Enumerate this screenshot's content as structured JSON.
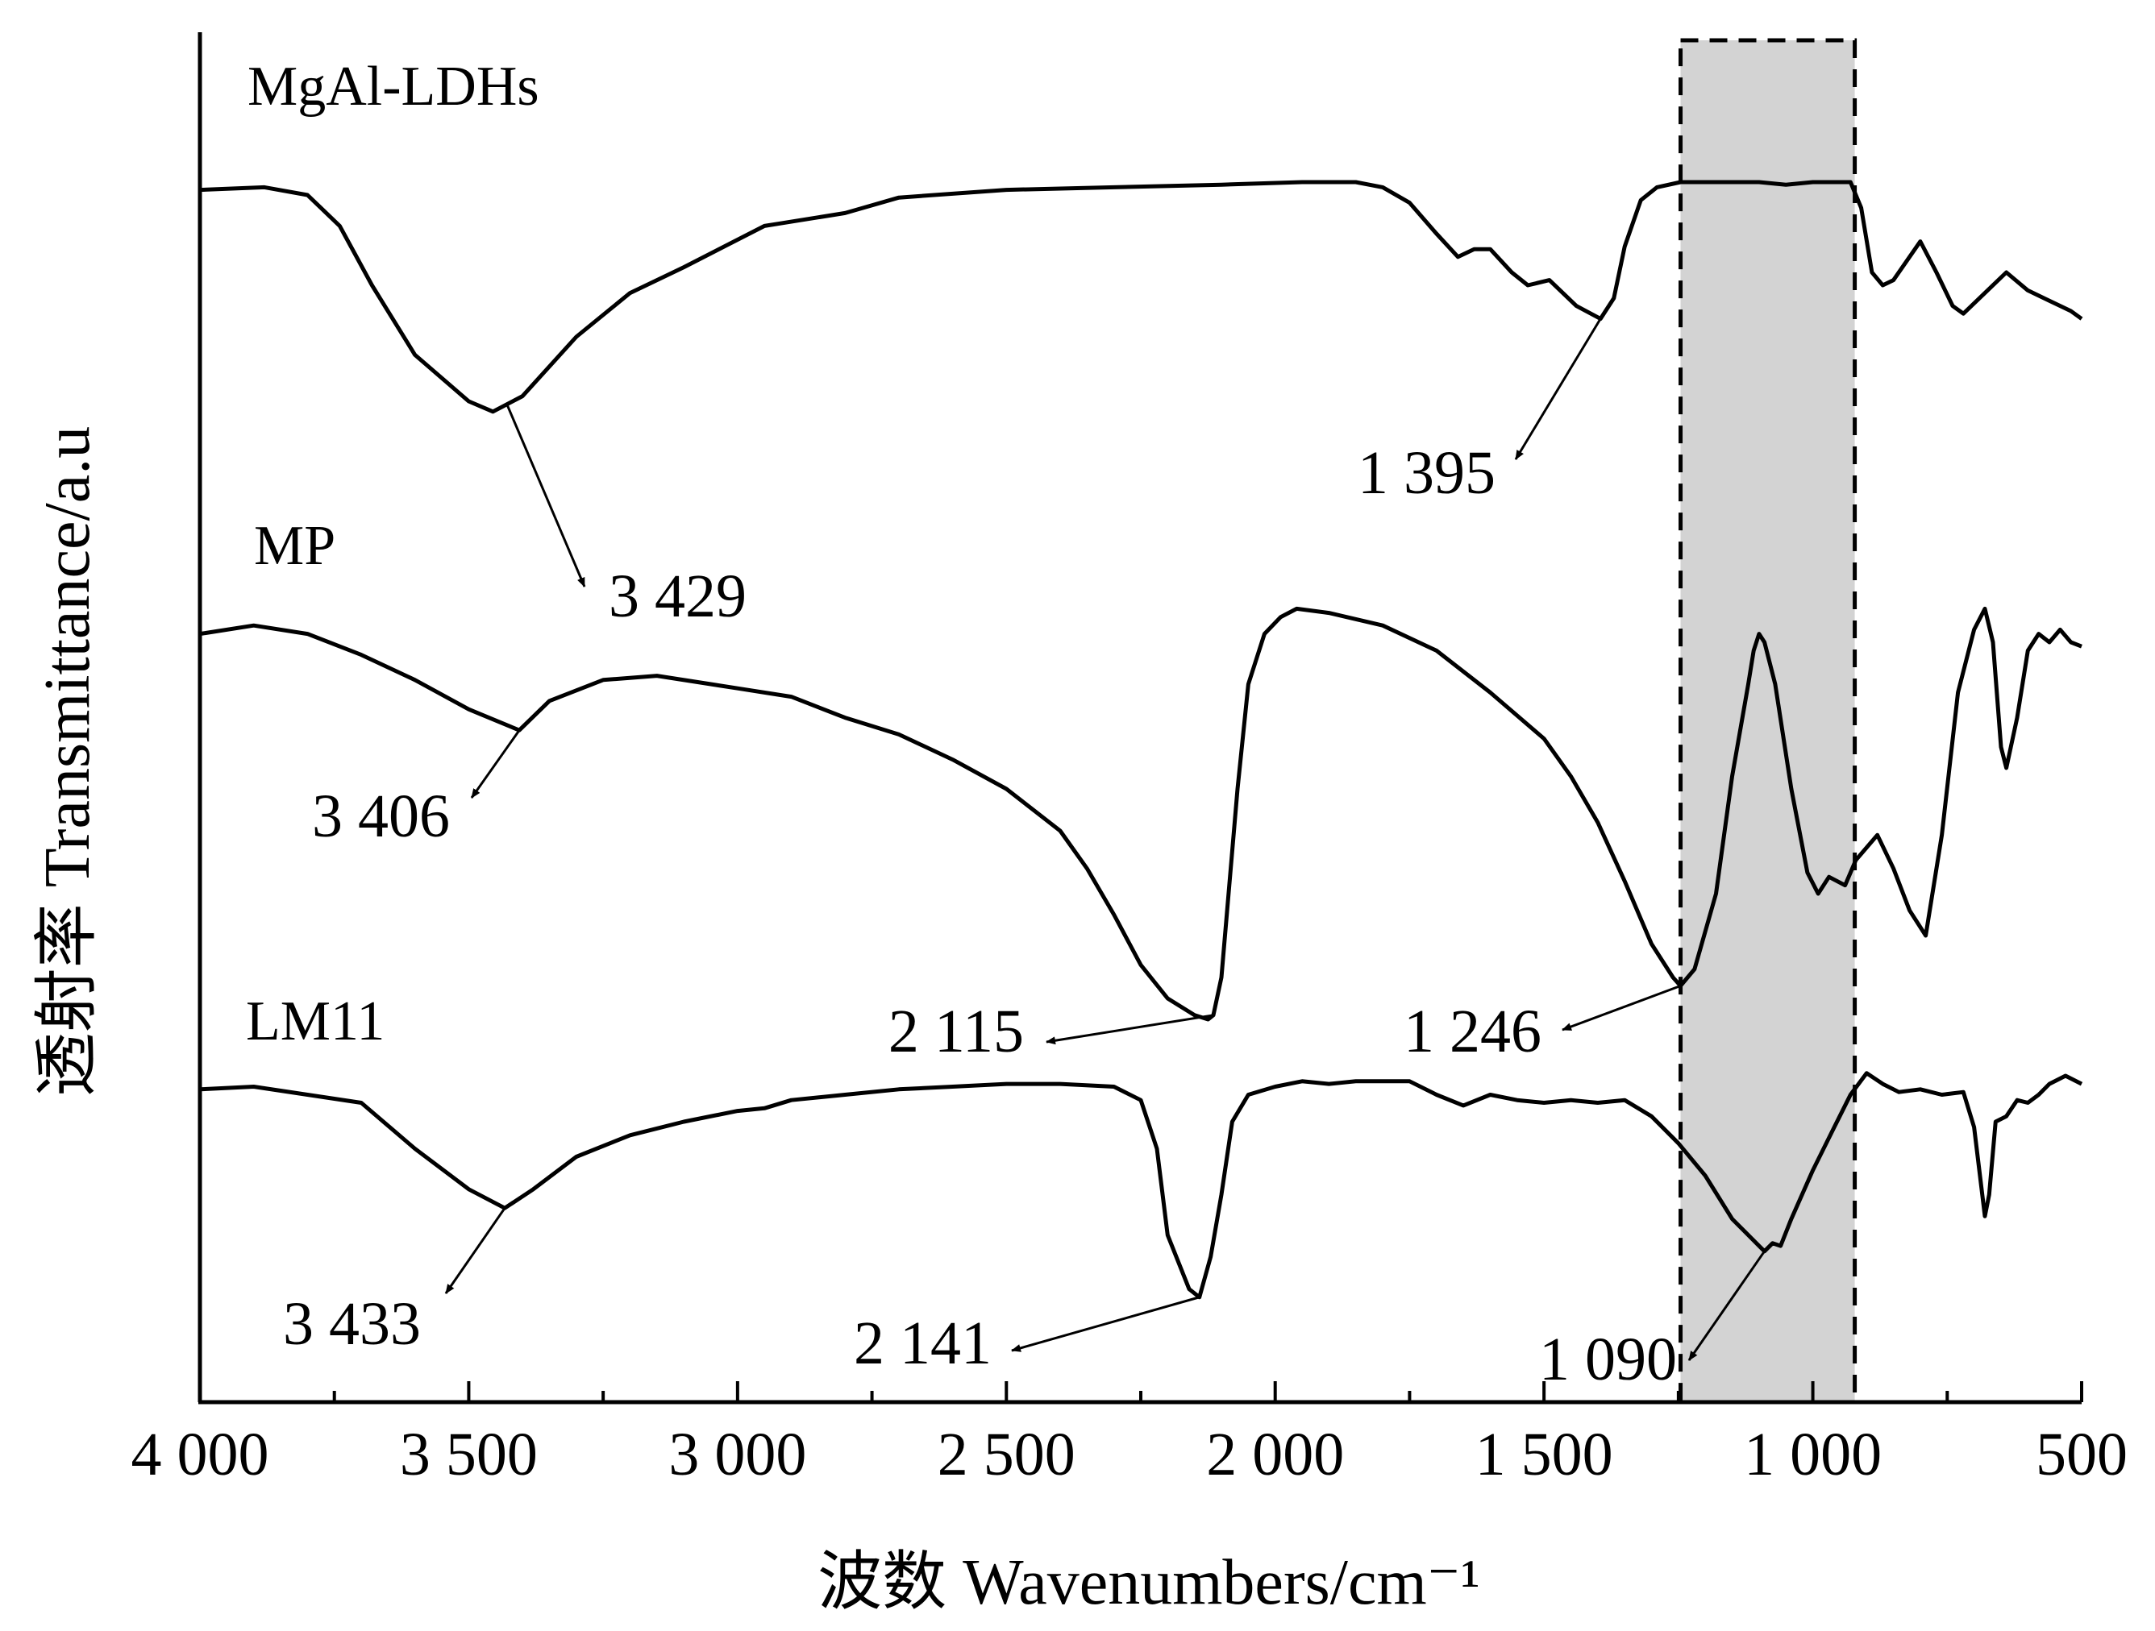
{
  "chart_data": {
    "type": "line",
    "title": "",
    "xlabel": "波数 Wavenumbers/cm⁻¹",
    "ylabel": "透射率 Transmittance/a.u",
    "xlim": [
      4000,
      500
    ],
    "x_reversed": true,
    "y_ticks": false,
    "grid": false,
    "legend": "none",
    "x_ticks": [
      {
        "value": 4000,
        "label": "4 000"
      },
      {
        "value": 3500,
        "label": "3 500"
      },
      {
        "value": 3000,
        "label": "3 000"
      },
      {
        "value": 2500,
        "label": "2 500"
      },
      {
        "value": 2000,
        "label": "2 000"
      },
      {
        "value": 1500,
        "label": "1 500"
      },
      {
        "value": 1000,
        "label": "1 000"
      },
      {
        "value": 500,
        "label": "500"
      }
    ],
    "highlight_region": {
      "x_from": 1246,
      "x_to": 922,
      "fill": "#d3d3d3",
      "border": "dashed"
    },
    "series": [
      {
        "name": "MgAl-LDHs",
        "points": [
          [
            4000,
            0.08
          ],
          [
            3880,
            0.07
          ],
          [
            3800,
            0.1
          ],
          [
            3740,
            0.22
          ],
          [
            3680,
            0.45
          ],
          [
            3600,
            0.72
          ],
          [
            3500,
            0.9
          ],
          [
            3455,
            0.94
          ],
          [
            3400,
            0.88
          ],
          [
            3300,
            0.65
          ],
          [
            3200,
            0.48
          ],
          [
            3100,
            0.38
          ],
          [
            2950,
            0.22
          ],
          [
            2920,
            0.21
          ],
          [
            2800,
            0.17
          ],
          [
            2700,
            0.11
          ],
          [
            2500,
            0.08
          ],
          [
            2300,
            0.07
          ],
          [
            2100,
            0.06
          ],
          [
            1950,
            0.05
          ],
          [
            1850,
            0.05
          ],
          [
            1800,
            0.07
          ],
          [
            1750,
            0.13
          ],
          [
            1700,
            0.25
          ],
          [
            1660,
            0.34
          ],
          [
            1630,
            0.31
          ],
          [
            1600,
            0.31
          ],
          [
            1560,
            0.4
          ],
          [
            1530,
            0.45
          ],
          [
            1490,
            0.43
          ],
          [
            1440,
            0.53
          ],
          [
            1395,
            0.58
          ],
          [
            1370,
            0.5
          ],
          [
            1350,
            0.3
          ],
          [
            1320,
            0.12
          ],
          [
            1290,
            0.07
          ],
          [
            1246,
            0.05
          ],
          [
            1100,
            0.05
          ],
          [
            1050,
            0.06
          ],
          [
            1000,
            0.05
          ],
          [
            930,
            0.05
          ],
          [
            910,
            0.15
          ],
          [
            890,
            0.4
          ],
          [
            870,
            0.45
          ],
          [
            850,
            0.43
          ],
          [
            800,
            0.28
          ],
          [
            770,
            0.4
          ],
          [
            740,
            0.53
          ],
          [
            720,
            0.56
          ],
          [
            680,
            0.48
          ],
          [
            640,
            0.4
          ],
          [
            600,
            0.47
          ],
          [
            560,
            0.51
          ],
          [
            520,
            0.55
          ],
          [
            500,
            0.58
          ]
        ]
      },
      {
        "name": "MP",
        "points": [
          [
            4000,
            0.08
          ],
          [
            3900,
            0.06
          ],
          [
            3800,
            0.08
          ],
          [
            3700,
            0.13
          ],
          [
            3600,
            0.19
          ],
          [
            3500,
            0.26
          ],
          [
            3406,
            0.31
          ],
          [
            3350,
            0.24
          ],
          [
            3250,
            0.19
          ],
          [
            3150,
            0.18
          ],
          [
            3000,
            0.21
          ],
          [
            2900,
            0.23
          ],
          [
            2800,
            0.28
          ],
          [
            2700,
            0.32
          ],
          [
            2600,
            0.38
          ],
          [
            2500,
            0.45
          ],
          [
            2400,
            0.55
          ],
          [
            2350,
            0.64
          ],
          [
            2300,
            0.75
          ],
          [
            2250,
            0.87
          ],
          [
            2200,
            0.95
          ],
          [
            2150,
            0.99
          ],
          [
            2125,
            1.0
          ],
          [
            2115,
            0.99
          ],
          [
            2100,
            0.9
          ],
          [
            2070,
            0.45
          ],
          [
            2050,
            0.2
          ],
          [
            2020,
            0.08
          ],
          [
            1990,
            0.04
          ],
          [
            1960,
            0.02
          ],
          [
            1900,
            0.03
          ],
          [
            1800,
            0.06
          ],
          [
            1700,
            0.12
          ],
          [
            1600,
            0.22
          ],
          [
            1500,
            0.33
          ],
          [
            1450,
            0.42
          ],
          [
            1400,
            0.53
          ],
          [
            1350,
            0.67
          ],
          [
            1300,
            0.82
          ],
          [
            1260,
            0.9
          ],
          [
            1246,
            0.92
          ],
          [
            1220,
            0.88
          ],
          [
            1180,
            0.7
          ],
          [
            1150,
            0.42
          ],
          [
            1120,
            0.2
          ],
          [
            1110,
            0.12
          ],
          [
            1100,
            0.08
          ],
          [
            1090,
            0.1
          ],
          [
            1070,
            0.2
          ],
          [
            1040,
            0.45
          ],
          [
            1010,
            0.65
          ],
          [
            990,
            0.7
          ],
          [
            970,
            0.66
          ],
          [
            940,
            0.68
          ],
          [
            920,
            0.62
          ],
          [
            880,
            0.56
          ],
          [
            850,
            0.64
          ],
          [
            820,
            0.74
          ],
          [
            790,
            0.8
          ],
          [
            760,
            0.56
          ],
          [
            730,
            0.22
          ],
          [
            700,
            0.07
          ],
          [
            680,
            0.02
          ],
          [
            665,
            0.1
          ],
          [
            650,
            0.35
          ],
          [
            640,
            0.4
          ],
          [
            620,
            0.28
          ],
          [
            600,
            0.12
          ],
          [
            580,
            0.08
          ],
          [
            560,
            0.1
          ],
          [
            540,
            0.07
          ],
          [
            520,
            0.1
          ],
          [
            500,
            0.11
          ]
        ]
      },
      {
        "name": "LM11",
        "points": [
          [
            4000,
            0.08
          ],
          [
            3900,
            0.07
          ],
          [
            3800,
            0.1
          ],
          [
            3700,
            0.13
          ],
          [
            3600,
            0.3
          ],
          [
            3500,
            0.45
          ],
          [
            3433,
            0.52
          ],
          [
            3380,
            0.45
          ],
          [
            3300,
            0.33
          ],
          [
            3200,
            0.25
          ],
          [
            3100,
            0.2
          ],
          [
            3000,
            0.16
          ],
          [
            2950,
            0.15
          ],
          [
            2900,
            0.12
          ],
          [
            2800,
            0.1
          ],
          [
            2700,
            0.08
          ],
          [
            2600,
            0.07
          ],
          [
            2500,
            0.06
          ],
          [
            2400,
            0.06
          ],
          [
            2300,
            0.07
          ],
          [
            2250,
            0.12
          ],
          [
            2220,
            0.3
          ],
          [
            2200,
            0.62
          ],
          [
            2160,
            0.82
          ],
          [
            2141,
            0.85
          ],
          [
            2120,
            0.7
          ],
          [
            2100,
            0.47
          ],
          [
            2080,
            0.2
          ],
          [
            2050,
            0.1
          ],
          [
            2000,
            0.07
          ],
          [
            1950,
            0.05
          ],
          [
            1900,
            0.06
          ],
          [
            1850,
            0.05
          ],
          [
            1800,
            0.05
          ],
          [
            1750,
            0.05
          ],
          [
            1700,
            0.1
          ],
          [
            1650,
            0.14
          ],
          [
            1600,
            0.1
          ],
          [
            1550,
            0.12
          ],
          [
            1500,
            0.13
          ],
          [
            1450,
            0.12
          ],
          [
            1400,
            0.13
          ],
          [
            1350,
            0.12
          ],
          [
            1300,
            0.18
          ],
          [
            1250,
            0.28
          ],
          [
            1200,
            0.4
          ],
          [
            1150,
            0.56
          ],
          [
            1100,
            0.66
          ],
          [
            1090,
            0.68
          ],
          [
            1075,
            0.65
          ],
          [
            1060,
            0.66
          ],
          [
            1040,
            0.56
          ],
          [
            1000,
            0.38
          ],
          [
            960,
            0.22
          ],
          [
            930,
            0.1
          ],
          [
            900,
            0.02
          ],
          [
            870,
            0.06
          ],
          [
            840,
            0.09
          ],
          [
            800,
            0.08
          ],
          [
            760,
            0.1
          ],
          [
            720,
            0.09
          ],
          [
            700,
            0.22
          ],
          [
            680,
            0.55
          ],
          [
            672,
            0.47
          ],
          [
            660,
            0.2
          ],
          [
            640,
            0.18
          ],
          [
            620,
            0.12
          ],
          [
            600,
            0.13
          ],
          [
            580,
            0.1
          ],
          [
            560,
            0.06
          ],
          [
            530,
            0.03
          ],
          [
            500,
            0.06
          ]
        ]
      }
    ],
    "series_labels": [
      {
        "series": "MgAl-LDHs",
        "text": "MgAl-LDHs"
      },
      {
        "series": "MP",
        "text": "MP"
      },
      {
        "series": "LM11",
        "text": "LM11"
      }
    ],
    "annotations": [
      {
        "series": "MgAl-LDHs",
        "x": 3429,
        "text": "3 429"
      },
      {
        "series": "MgAl-LDHs",
        "x": 1395,
        "text": "1 395"
      },
      {
        "series": "MP",
        "x": 3406,
        "text": "3 406"
      },
      {
        "series": "MP",
        "x": 2115,
        "text": "2 115"
      },
      {
        "series": "MP",
        "x": 1246,
        "text": "1 246"
      },
      {
        "series": "LM11",
        "x": 3433,
        "text": "3 433"
      },
      {
        "series": "LM11",
        "x": 2141,
        "text": "2 141"
      },
      {
        "series": "LM11",
        "x": 1090,
        "text": "1 090"
      }
    ]
  }
}
